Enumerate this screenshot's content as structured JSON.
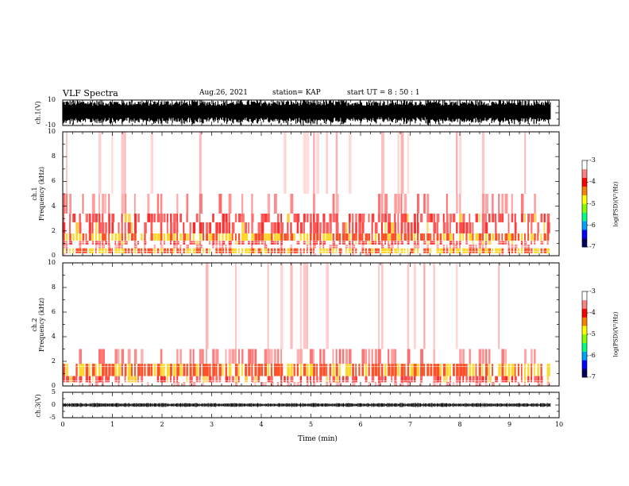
{
  "header": {
    "title": "VLF Spectra",
    "date": "Aug.26, 2021",
    "station": "station= KAP",
    "start": "start  UT =  8 : 50 : 1"
  },
  "chart_data": [
    {
      "type": "line",
      "panel": "ch1-waveform",
      "ylabel": "ch.1(V)",
      "ylim": [
        -10,
        10
      ],
      "yticks": [
        "10",
        "-10"
      ],
      "xlim": [
        0,
        10
      ],
      "data_extent_min": 9.82,
      "waveform_amplitude": 10,
      "description_of_signal": "saturated",
      "color": "#000000"
    },
    {
      "type": "heatmap",
      "panel": "ch1-spectrogram",
      "ylabel_top": "ch.1",
      "ylabel": "Frequency (kHz)",
      "ylim": [
        0,
        10
      ],
      "yticks": [
        "0",
        "2",
        "4",
        "6",
        "8",
        "10"
      ],
      "xlim": [
        0,
        10
      ],
      "data_extent_min": 9.82,
      "bands_khz": [
        {
          "from": 0.0,
          "to": 0.2,
          "level": "low"
        },
        {
          "from": 0.2,
          "to": 0.6,
          "level": "very-high"
        },
        {
          "from": 0.6,
          "to": 0.9,
          "level": "med"
        },
        {
          "from": 0.9,
          "to": 1.2,
          "level": "high"
        },
        {
          "from": 1.2,
          "to": 1.8,
          "level": "very-high"
        },
        {
          "from": 1.8,
          "to": 2.7,
          "level": "high"
        },
        {
          "from": 2.7,
          "to": 3.4,
          "level": "high"
        },
        {
          "from": 3.4,
          "to": 5.0,
          "level": "med"
        },
        {
          "from": 5.0,
          "to": 10.0,
          "level": "low"
        }
      ]
    },
    {
      "type": "heatmap",
      "panel": "ch2-spectrogram",
      "ylabel_top": "ch.2",
      "ylabel": "Frequency (kHz)",
      "ylim": [
        0,
        10
      ],
      "yticks": [
        "0",
        "2",
        "4",
        "6",
        "8",
        "10"
      ],
      "xlim": [
        0,
        10
      ],
      "data_extent_min": 9.82,
      "bands_khz": [
        {
          "from": 0.0,
          "to": 0.3,
          "level": "med"
        },
        {
          "from": 0.3,
          "to": 0.8,
          "level": "high"
        },
        {
          "from": 0.8,
          "to": 1.8,
          "level": "very-high"
        },
        {
          "from": 1.8,
          "to": 3.0,
          "level": "med"
        },
        {
          "from": 3.0,
          "to": 10.0,
          "level": "low"
        }
      ]
    },
    {
      "type": "line",
      "panel": "ch3-waveform",
      "ylabel": "ch.3(V)",
      "ylim": [
        -5,
        5
      ],
      "yticks": [
        "5",
        "0",
        "-5"
      ],
      "xlim": [
        0,
        10
      ],
      "data_extent_min": 9.82,
      "baseline_v": 0,
      "waveform_amplitude": 0.8,
      "color": "#000000"
    }
  ],
  "colorbar": {
    "label": "log(PSD)(V²/Hz)",
    "ticks": [
      "-3",
      "-4",
      "-5",
      "-6",
      "-7"
    ],
    "range": [
      -7,
      -3
    ],
    "colors": [
      "#000060",
      "#0000ff",
      "#00a0ff",
      "#00ff80",
      "#80ff00",
      "#ffff00",
      "#ff8000",
      "#ff0000",
      "#ff8080",
      "#ffffff"
    ]
  },
  "xaxis": {
    "label": "Time (min)",
    "ticks": [
      "0",
      "1",
      "2",
      "3",
      "4",
      "5",
      "6",
      "7",
      "8",
      "9",
      "10"
    ]
  }
}
